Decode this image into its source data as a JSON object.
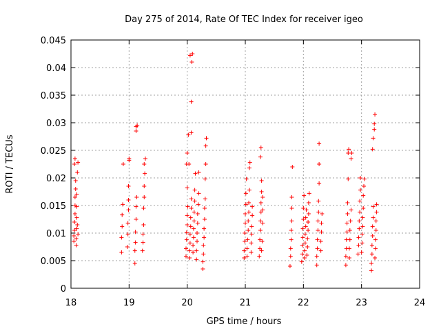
{
  "chart_data": {
    "type": "scatter",
    "title": "Day 275 of 2014, Rate Of TEC Index for receiver igeo",
    "xlabel": "GPS time / hours",
    "ylabel": "ROTI / TECUs",
    "xlim": [
      18,
      24
    ],
    "ylim": [
      0,
      0.045
    ],
    "xticks": [
      18,
      19,
      20,
      21,
      22,
      23,
      24
    ],
    "yticks": [
      0,
      0.005,
      0.01,
      0.015,
      0.02,
      0.025,
      0.03,
      0.035,
      0.04,
      0.045
    ],
    "xtick_labels": [
      "18",
      "19",
      "20",
      "21",
      "22",
      "23",
      "24"
    ],
    "ytick_labels": [
      "0",
      "0.005",
      "0.01",
      "0.015",
      "0.02",
      "0.025",
      "0.03",
      "0.035",
      "0.04",
      "0.045"
    ],
    "grid": true,
    "marker": "+",
    "color": "#ff0000",
    "series": [
      {
        "name": "ROTI",
        "points": [
          [
            18.05,
            0.0085
          ],
          [
            18.05,
            0.0095
          ],
          [
            18.06,
            0.0105
          ],
          [
            18.06,
            0.012
          ],
          [
            18.07,
            0.0135
          ],
          [
            18.07,
            0.015
          ],
          [
            18.07,
            0.0165
          ],
          [
            18.08,
            0.018
          ],
          [
            18.08,
            0.0195
          ],
          [
            18.06,
            0.0225
          ],
          [
            18.07,
            0.0235
          ],
          [
            18.09,
            0.0078
          ],
          [
            18.09,
            0.009
          ],
          [
            18.1,
            0.0108
          ],
          [
            18.1,
            0.0128
          ],
          [
            18.1,
            0.0148
          ],
          [
            18.1,
            0.017
          ],
          [
            18.11,
            0.021
          ],
          [
            18.12,
            0.0228
          ],
          [
            18.11,
            0.0115
          ],
          [
            18.12,
            0.0098
          ],
          [
            18.87,
            0.0065
          ],
          [
            18.87,
            0.0092
          ],
          [
            18.88,
            0.0112
          ],
          [
            18.88,
            0.0133
          ],
          [
            18.89,
            0.0152
          ],
          [
            18.9,
            0.0225
          ],
          [
            18.97,
            0.0075
          ],
          [
            18.98,
            0.0098
          ],
          [
            18.98,
            0.0118
          ],
          [
            18.99,
            0.0142
          ],
          [
            18.99,
            0.016
          ],
          [
            18.99,
            0.0185
          ],
          [
            19.0,
            0.0232
          ],
          [
            19.0,
            0.0235
          ],
          [
            19.1,
            0.0045
          ],
          [
            19.1,
            0.0068
          ],
          [
            19.11,
            0.0083
          ],
          [
            19.11,
            0.0102
          ],
          [
            19.12,
            0.0125
          ],
          [
            19.12,
            0.0148
          ],
          [
            19.13,
            0.0165
          ],
          [
            19.12,
            0.0285
          ],
          [
            19.12,
            0.0293
          ],
          [
            19.14,
            0.0295
          ],
          [
            19.23,
            0.0068
          ],
          [
            19.24,
            0.0083
          ],
          [
            19.24,
            0.0098
          ],
          [
            19.25,
            0.0115
          ],
          [
            19.25,
            0.0145
          ],
          [
            19.26,
            0.0165
          ],
          [
            19.26,
            0.0185
          ],
          [
            19.27,
            0.0208
          ],
          [
            19.26,
            0.0225
          ],
          [
            19.28,
            0.0235
          ],
          [
            19.98,
            0.0058
          ],
          [
            19.98,
            0.0072
          ],
          [
            19.99,
            0.0088
          ],
          [
            19.99,
            0.0101
          ],
          [
            20.0,
            0.0115
          ],
          [
            20.0,
            0.0132
          ],
          [
            20.01,
            0.0148
          ],
          [
            20.0,
            0.0182
          ],
          [
            19.99,
            0.0225
          ],
          [
            20.0,
            0.0245
          ],
          [
            20.02,
            0.0278
          ],
          [
            20.03,
            0.0225
          ],
          [
            20.04,
            0.0055
          ],
          [
            20.04,
            0.0068
          ],
          [
            20.05,
            0.0082
          ],
          [
            20.05,
            0.0098
          ],
          [
            20.06,
            0.0112
          ],
          [
            20.06,
            0.0128
          ],
          [
            20.07,
            0.0145
          ],
          [
            20.07,
            0.0162
          ],
          [
            20.07,
            0.0282
          ],
          [
            20.07,
            0.0338
          ],
          [
            20.08,
            0.041
          ],
          [
            20.09,
            0.0425
          ],
          [
            20.05,
            0.0422
          ],
          [
            20.1,
            0.0065
          ],
          [
            20.1,
            0.0078
          ],
          [
            20.11,
            0.0092
          ],
          [
            20.11,
            0.0108
          ],
          [
            20.12,
            0.0122
          ],
          [
            20.12,
            0.0138
          ],
          [
            20.13,
            0.0158
          ],
          [
            20.13,
            0.0178
          ],
          [
            20.14,
            0.0208
          ],
          [
            20.16,
            0.0052
          ],
          [
            20.16,
            0.0068
          ],
          [
            20.17,
            0.0085
          ],
          [
            20.17,
            0.01
          ],
          [
            20.18,
            0.0118
          ],
          [
            20.18,
            0.0135
          ],
          [
            20.19,
            0.0152
          ],
          [
            20.2,
            0.0172
          ],
          [
            20.2,
            0.021
          ],
          [
            20.27,
            0.0035
          ],
          [
            20.27,
            0.0048
          ],
          [
            20.28,
            0.0062
          ],
          [
            20.28,
            0.0078
          ],
          [
            20.29,
            0.0092
          ],
          [
            20.29,
            0.0108
          ],
          [
            20.3,
            0.0125
          ],
          [
            20.3,
            0.0145
          ],
          [
            20.31,
            0.0162
          ],
          [
            20.31,
            0.0198
          ],
          [
            20.32,
            0.0225
          ],
          [
            20.32,
            0.0258
          ],
          [
            20.33,
            0.0272
          ],
          [
            20.98,
            0.0055
          ],
          [
            20.98,
            0.0068
          ],
          [
            20.99,
            0.0085
          ],
          [
            20.99,
            0.01
          ],
          [
            21.0,
            0.0118
          ],
          [
            21.0,
            0.0135
          ],
          [
            21.01,
            0.0152
          ],
          [
            21.01,
            0.0172
          ],
          [
            21.02,
            0.0198
          ],
          [
            21.03,
            0.0058
          ],
          [
            21.03,
            0.0072
          ],
          [
            21.04,
            0.0088
          ],
          [
            21.05,
            0.0105
          ],
          [
            21.05,
            0.0122
          ],
          [
            21.06,
            0.0138
          ],
          [
            21.06,
            0.0155
          ],
          [
            21.07,
            0.0178
          ],
          [
            21.07,
            0.0218
          ],
          [
            21.08,
            0.0228
          ],
          [
            21.1,
            0.0065
          ],
          [
            21.1,
            0.0082
          ],
          [
            21.11,
            0.0098
          ],
          [
            21.11,
            0.0112
          ],
          [
            21.12,
            0.0132
          ],
          [
            21.12,
            0.0148
          ],
          [
            21.24,
            0.0058
          ],
          [
            21.25,
            0.0072
          ],
          [
            21.25,
            0.0088
          ],
          [
            21.26,
            0.0105
          ],
          [
            21.26,
            0.0122
          ],
          [
            21.27,
            0.0138
          ],
          [
            21.27,
            0.0155
          ],
          [
            21.28,
            0.0175
          ],
          [
            21.28,
            0.0195
          ],
          [
            21.26,
            0.0238
          ],
          [
            21.27,
            0.0255
          ],
          [
            21.28,
            0.0068
          ],
          [
            21.29,
            0.0085
          ],
          [
            21.3,
            0.0118
          ],
          [
            21.3,
            0.0142
          ],
          [
            21.3,
            0.0165
          ],
          [
            21.77,
            0.004
          ],
          [
            21.78,
            0.0058
          ],
          [
            21.78,
            0.0072
          ],
          [
            21.79,
            0.0088
          ],
          [
            21.79,
            0.0105
          ],
          [
            21.8,
            0.0122
          ],
          [
            21.8,
            0.0145
          ],
          [
            21.8,
            0.0165
          ],
          [
            21.81,
            0.022
          ],
          [
            21.97,
            0.0048
          ],
          [
            21.98,
            0.0062
          ],
          [
            21.98,
            0.0078
          ],
          [
            21.99,
            0.0092
          ],
          [
            21.99,
            0.0108
          ],
          [
            22.0,
            0.0125
          ],
          [
            22.0,
            0.0145
          ],
          [
            22.01,
            0.0168
          ],
          [
            22.02,
            0.0055
          ],
          [
            22.02,
            0.0068
          ],
          [
            22.03,
            0.0082
          ],
          [
            22.03,
            0.0098
          ],
          [
            22.04,
            0.0112
          ],
          [
            22.04,
            0.0128
          ],
          [
            22.05,
            0.0142
          ],
          [
            22.06,
            0.006
          ],
          [
            22.07,
            0.0075
          ],
          [
            22.07,
            0.009
          ],
          [
            22.08,
            0.0105
          ],
          [
            22.08,
            0.012
          ],
          [
            22.09,
            0.0135
          ],
          [
            22.09,
            0.0155
          ],
          [
            22.1,
            0.0172
          ],
          [
            22.23,
            0.0042
          ],
          [
            22.23,
            0.0058
          ],
          [
            22.24,
            0.0072
          ],
          [
            22.24,
            0.0088
          ],
          [
            22.25,
            0.0105
          ],
          [
            22.25,
            0.0122
          ],
          [
            22.26,
            0.0138
          ],
          [
            22.26,
            0.0158
          ],
          [
            22.27,
            0.019
          ],
          [
            22.27,
            0.0225
          ],
          [
            22.27,
            0.0262
          ],
          [
            22.3,
            0.0068
          ],
          [
            22.3,
            0.0085
          ],
          [
            22.31,
            0.0102
          ],
          [
            22.31,
            0.0118
          ],
          [
            22.32,
            0.0135
          ],
          [
            22.73,
            0.0042
          ],
          [
            22.73,
            0.0058
          ],
          [
            22.74,
            0.0072
          ],
          [
            22.74,
            0.0088
          ],
          [
            22.75,
            0.0102
          ],
          [
            22.75,
            0.0118
          ],
          [
            22.76,
            0.0135
          ],
          [
            22.76,
            0.0155
          ],
          [
            22.77,
            0.0198
          ],
          [
            22.77,
            0.0245
          ],
          [
            22.78,
            0.0252
          ],
          [
            22.79,
            0.0055
          ],
          [
            22.79,
            0.0072
          ],
          [
            22.8,
            0.0088
          ],
          [
            22.8,
            0.0105
          ],
          [
            22.81,
            0.0122
          ],
          [
            22.82,
            0.0142
          ],
          [
            22.82,
            0.0235
          ],
          [
            22.83,
            0.0245
          ],
          [
            22.94,
            0.0062
          ],
          [
            22.95,
            0.0078
          ],
          [
            22.95,
            0.0092
          ],
          [
            22.96,
            0.0108
          ],
          [
            22.96,
            0.0122
          ],
          [
            22.97,
            0.0138
          ],
          [
            22.97,
            0.0158
          ],
          [
            22.98,
            0.0178
          ],
          [
            22.98,
            0.02
          ],
          [
            23.0,
            0.0065
          ],
          [
            23.01,
            0.0082
          ],
          [
            23.01,
            0.0098
          ],
          [
            23.02,
            0.0112
          ],
          [
            23.02,
            0.0128
          ],
          [
            23.03,
            0.0145
          ],
          [
            23.03,
            0.0168
          ],
          [
            23.04,
            0.0185
          ],
          [
            23.05,
            0.0198
          ],
          [
            23.17,
            0.0032
          ],
          [
            23.17,
            0.0045
          ],
          [
            23.18,
            0.0062
          ],
          [
            23.18,
            0.0078
          ],
          [
            23.19,
            0.0095
          ],
          [
            23.19,
            0.0112
          ],
          [
            23.2,
            0.0128
          ],
          [
            23.2,
            0.0148
          ],
          [
            23.19,
            0.0252
          ],
          [
            23.2,
            0.0272
          ],
          [
            23.22,
            0.0288
          ],
          [
            23.22,
            0.0298
          ],
          [
            23.23,
            0.0315
          ],
          [
            23.23,
            0.0055
          ],
          [
            23.24,
            0.0072
          ],
          [
            23.24,
            0.0088
          ],
          [
            23.25,
            0.0105
          ],
          [
            23.25,
            0.0122
          ],
          [
            23.26,
            0.0138
          ],
          [
            23.26,
            0.0152
          ]
        ]
      }
    ]
  }
}
